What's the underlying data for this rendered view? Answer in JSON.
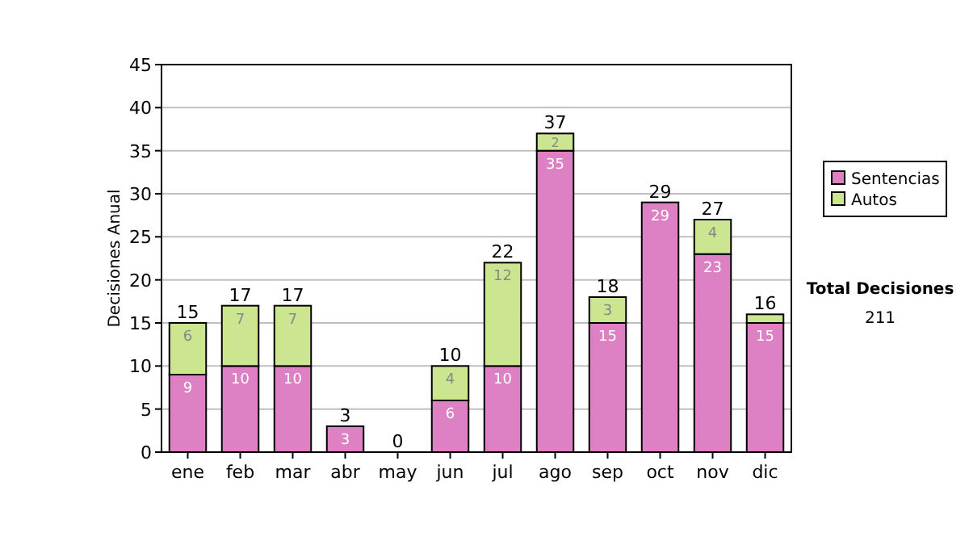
{
  "chart_data": {
    "type": "bar",
    "stacked": true,
    "ylabel": "Decisiones Anual",
    "categories": [
      "ene",
      "feb",
      "mar",
      "abr",
      "may",
      "jun",
      "jul",
      "ago",
      "sep",
      "oct",
      "nov",
      "dic"
    ],
    "series": [
      {
        "name": "Sentencias",
        "color": "#dd80c4",
        "values": [
          9,
          10,
          10,
          3,
          0,
          6,
          10,
          35,
          15,
          29,
          23,
          15
        ],
        "value_labels": [
          "9",
          "10",
          "10",
          "3",
          null,
          "6",
          "10",
          "35",
          "15",
          "29",
          "23",
          "15"
        ]
      },
      {
        "name": "Autos",
        "color": "#cce590",
        "values": [
          6,
          7,
          7,
          0,
          0,
          4,
          12,
          2,
          3,
          0,
          4,
          1
        ],
        "value_labels": [
          "6",
          "7",
          "7",
          null,
          null,
          "4",
          "12",
          "2",
          "3",
          null,
          "4",
          null
        ]
      }
    ],
    "totals": [
      "15",
      "17",
      "17",
      "3",
      "0",
      "10",
      "22",
      "37",
      "18",
      "29",
      "27",
      "16"
    ],
    "ylim": [
      0,
      45
    ],
    "yticks": [
      0,
      5,
      10,
      15,
      20,
      25,
      30,
      35,
      40,
      45
    ],
    "grid": "y",
    "legend": "right",
    "annotations": [
      "Total Decisiones",
      "211"
    ]
  }
}
